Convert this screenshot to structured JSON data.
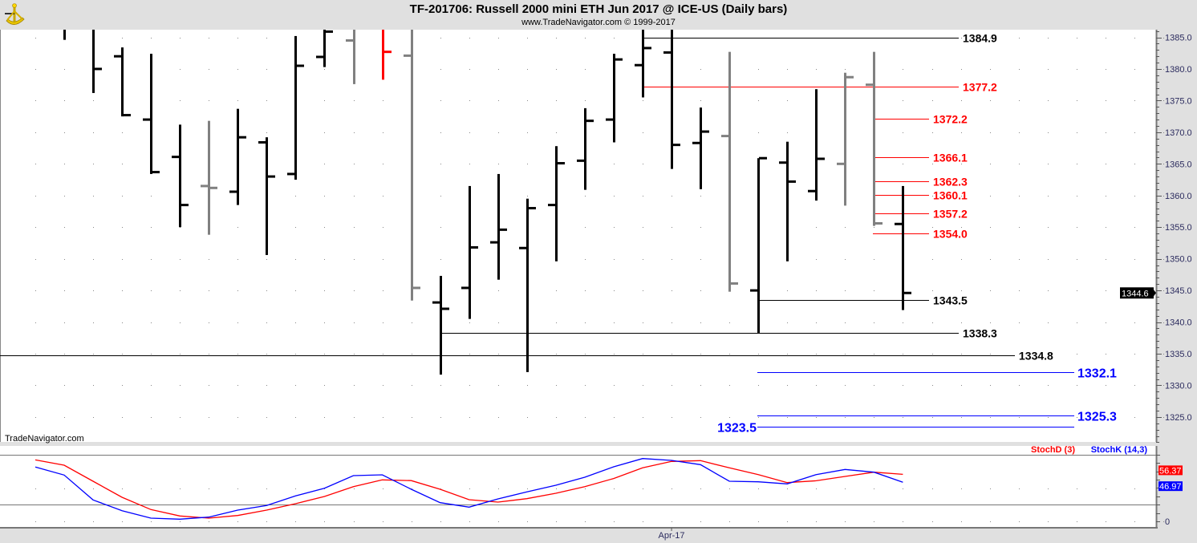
{
  "header": {
    "title": "TF-201706:  Russell 2000 mini ETH Jun 2017 @ ICE-US  (Daily bars)",
    "subtitle": "www.TradeNavigator.com © 1999-2017",
    "watermark": "TradeNavigator.com"
  },
  "chart_data": {
    "type": "ohlc",
    "title": "TF-201706:  Russell 2000 mini ETH Jun 2017 @ ICE-US  (Daily bars)",
    "y_axis": {
      "min": 1321,
      "max": 1386.4,
      "ticks": [
        "1385.0",
        "1380.0",
        "1375.0",
        "1370.0",
        "1365.0",
        "1360.0",
        "1355.0",
        "1350.0",
        "1345.0",
        "1340.0",
        "1335.0",
        "1330.0",
        "1325.0"
      ]
    },
    "x_labels": [
      {
        "bar": 21,
        "label": "Apr-17"
      }
    ],
    "current_price": "1344.6",
    "bars": [
      {
        "o": 1387.5,
        "h": 1389,
        "l": 1384.6,
        "c": 1386.8,
        "color": "#000000"
      },
      {
        "o": 1388,
        "h": 1389,
        "l": 1376.2,
        "c": 1380.0,
        "color": "#000000"
      },
      {
        "o": 1382.0,
        "h": 1383.4,
        "l": 1372.5,
        "c": 1372.7,
        "color": "#000000"
      },
      {
        "o": 1372.0,
        "h": 1382.4,
        "l": 1363.4,
        "c": 1363.7,
        "color": "#000000"
      },
      {
        "o": 1366.1,
        "h": 1371.2,
        "l": 1355.0,
        "c": 1358.5,
        "color": "#000000"
      },
      {
        "o": 1361.5,
        "h": 1371.8,
        "l": 1353.8,
        "c": 1361.2,
        "color": "#808080"
      },
      {
        "o": 1360.6,
        "h": 1373.7,
        "l": 1358.5,
        "c": 1369.2,
        "color": "#000000"
      },
      {
        "o": 1368.4,
        "h": 1369.2,
        "l": 1350.6,
        "c": 1363.0,
        "color": "#000000"
      },
      {
        "o": 1363.4,
        "h": 1385.2,
        "l": 1362.5,
        "c": 1380.5,
        "color": "#000000"
      },
      {
        "o": 1381.9,
        "h": 1387,
        "l": 1380.3,
        "c": 1385.9,
        "color": "#000000"
      },
      {
        "o": 1384.5,
        "h": 1389,
        "l": 1377.6,
        "c": 1388,
        "color": "#808080"
      },
      {
        "o": 1388,
        "h": 1389,
        "l": 1378.3,
        "c": 1382.7,
        "color": "#ff0000"
      },
      {
        "o": 1382.1,
        "h": 1389,
        "l": 1343.4,
        "c": 1345.4,
        "color": "#808080"
      },
      {
        "o": 1343.1,
        "h": 1347.3,
        "l": 1331.7,
        "c": 1342.1,
        "color": "#000000"
      },
      {
        "o": 1345.4,
        "h": 1361.5,
        "l": 1340.5,
        "c": 1351.8,
        "color": "#000000"
      },
      {
        "o": 1352.6,
        "h": 1363.4,
        "l": 1346.7,
        "c": 1354.6,
        "color": "#000000"
      },
      {
        "o": 1351.7,
        "h": 1359.5,
        "l": 1332.1,
        "c": 1358.0,
        "color": "#000000"
      },
      {
        "o": 1358.5,
        "h": 1367.8,
        "l": 1349.6,
        "c": 1365.1,
        "color": "#000000"
      },
      {
        "o": 1365.5,
        "h": 1373.8,
        "l": 1360.9,
        "c": 1371.8,
        "color": "#000000"
      },
      {
        "o": 1372.0,
        "h": 1382.4,
        "l": 1368.4,
        "c": 1381.5,
        "color": "#000000"
      },
      {
        "o": 1380.6,
        "h": 1387,
        "l": 1375.5,
        "c": 1383.3,
        "color": "#000000"
      },
      {
        "o": 1382.6,
        "h": 1389,
        "l": 1364.2,
        "c": 1368.0,
        "color": "#000000"
      },
      {
        "o": 1368.3,
        "h": 1373.9,
        "l": 1361.0,
        "c": 1370.1,
        "color": "#000000"
      },
      {
        "o": 1369.4,
        "h": 1382.7,
        "l": 1344.8,
        "c": 1346.1,
        "color": "#808080"
      },
      {
        "o": 1345.0,
        "h": 1365.9,
        "l": 1338.3,
        "c": 1365.9,
        "color": "#000000"
      },
      {
        "o": 1365.2,
        "h": 1368.5,
        "l": 1349.6,
        "c": 1362.2,
        "color": "#000000"
      },
      {
        "o": 1360.7,
        "h": 1376.8,
        "l": 1359.2,
        "c": 1365.8,
        "color": "#000000"
      },
      {
        "o": 1365.0,
        "h": 1379.4,
        "l": 1358.4,
        "c": 1378.7,
        "color": "#808080"
      },
      {
        "o": 1377.5,
        "h": 1382.7,
        "l": 1355.2,
        "c": 1355.6,
        "color": "#808080"
      },
      {
        "o": 1355.5,
        "h": 1361.5,
        "l": 1341.9,
        "c": 1344.6,
        "color": "#000000"
      }
    ],
    "levels": [
      {
        "value": 1384.9,
        "label": "1384.9",
        "color": "#000000"
      },
      {
        "value": 1377.2,
        "label": "1377.2",
        "color": "#ff0000"
      },
      {
        "value": 1372.2,
        "label": "1372.2",
        "color": "#ff0000"
      },
      {
        "value": 1366.1,
        "label": "1366.1",
        "color": "#ff0000"
      },
      {
        "value": 1362.3,
        "label": "1362.3",
        "color": "#ff0000"
      },
      {
        "value": 1360.1,
        "label": "1360.1",
        "color": "#ff0000"
      },
      {
        "value": 1357.2,
        "label": "1357.2",
        "color": "#ff0000"
      },
      {
        "value": 1354.0,
        "label": "1354.0",
        "color": "#ff0000"
      },
      {
        "value": 1343.5,
        "label": "1343.5",
        "color": "#000000"
      },
      {
        "value": 1338.3,
        "label": "1338.3",
        "color": "#000000"
      },
      {
        "value": 1334.8,
        "label": "1334.8",
        "color": "#000000"
      },
      {
        "value": 1332.1,
        "label": "1332.1",
        "color": "#0000ff"
      },
      {
        "value": 1325.3,
        "label": "1325.3",
        "color": "#0000ff"
      },
      {
        "value": 1323.5,
        "label": "1323.5",
        "color": "#0000ff"
      }
    ],
    "indicator": {
      "legend": [
        {
          "label": "StochD (3)",
          "color": "#ff0000"
        },
        {
          "label": "StochK (14,3)",
          "color": "#0000ff"
        }
      ],
      "ylim": [
        0,
        80
      ],
      "ref_lines": [
        20,
        80
      ],
      "y_tick_label": "0",
      "start_bar": -1,
      "stochD": [
        73.7,
        67.3,
        48.1,
        28.8,
        14.1,
        6.4,
        3.8,
        7.0,
        13.5,
        21.2,
        29.8,
        41.6,
        49.7,
        48.8,
        38.5,
        26.0,
        23.1,
        27.2,
        33.7,
        41.6,
        51.3,
        64.1,
        71.8,
        72.8,
        64.1,
        56.1,
        46.4,
        48.7,
        53.8,
        58.9,
        56.37
      ],
      "stochK": [
        65.1,
        55.5,
        25.7,
        12.8,
        3.8,
        2.6,
        5.1,
        13.5,
        18.9,
        30.5,
        39.7,
        54.8,
        55.8,
        38.5,
        22.4,
        17.0,
        26.9,
        35.3,
        43.3,
        52.9,
        65.4,
        75.3,
        73.1,
        68.0,
        48.1,
        47.4,
        44.9,
        56.1,
        62.2,
        58.9,
        46.97
      ],
      "last_values": [
        {
          "label": "56.37",
          "color": "#ff0000"
        },
        {
          "label": "46.97",
          "color": "#0000ff"
        }
      ]
    }
  }
}
